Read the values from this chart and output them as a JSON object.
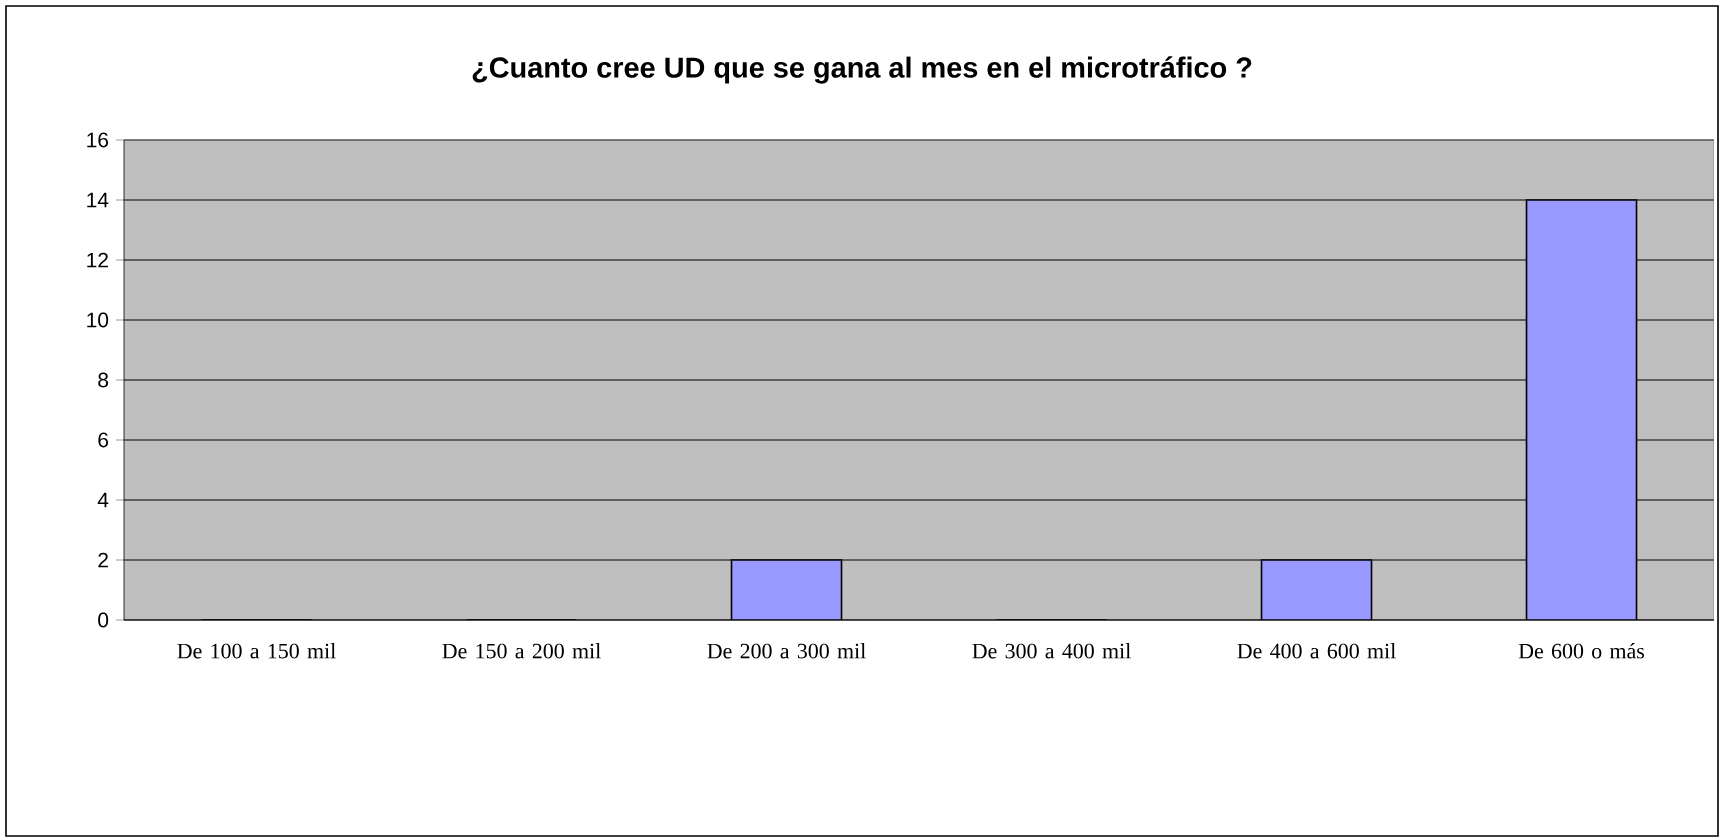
{
  "chart_data": {
    "type": "bar",
    "title": "¿Cuanto cree UD que se gana al mes en el microtráfico ?",
    "categories": [
      "De 100 a 150 mil",
      "De 150 a 200 mil",
      "De 200 a 300 mil",
      "De 300 a 400 mil",
      "De 400 a 600 mil",
      "De 600 o más"
    ],
    "values": [
      0,
      0,
      2,
      0,
      2,
      14
    ],
    "color": "#9999ff",
    "ylim": [
      0,
      16
    ],
    "yticks": [
      0,
      2,
      4,
      6,
      8,
      10,
      12,
      14,
      16
    ],
    "grid": "y"
  }
}
